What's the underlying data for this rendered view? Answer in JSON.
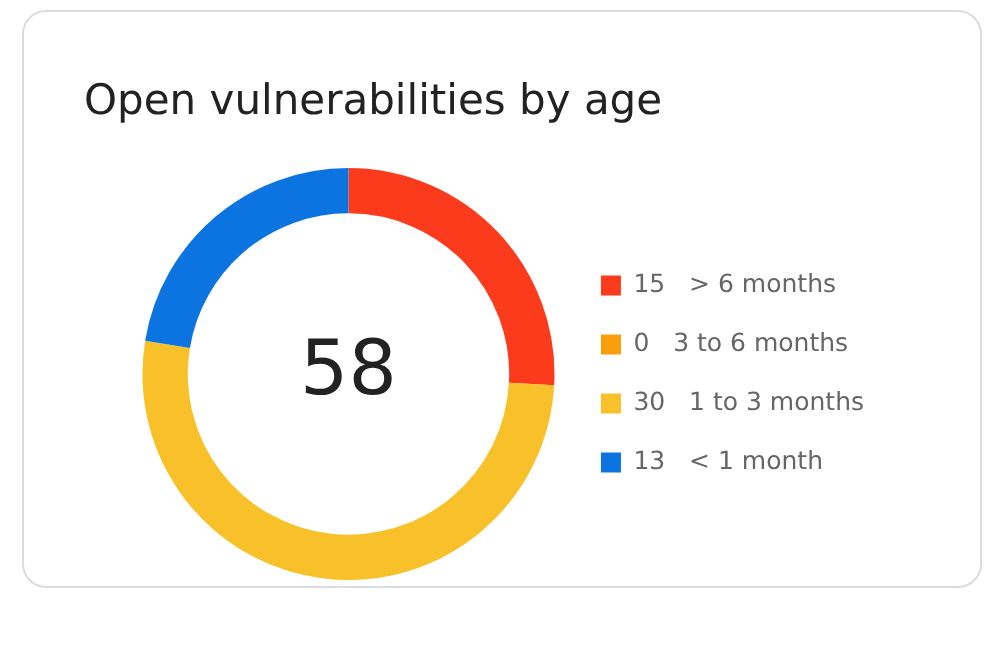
{
  "chart_data": {
    "type": "donut",
    "title": "Open vulnerabilities by age",
    "categories": [
      "> 6 months",
      "3 to 6 months",
      "1 to 3 months",
      "< 1 month"
    ],
    "values": [
      15,
      0,
      30,
      13
    ],
    "value_labels": [
      "15",
      "0",
      "30",
      "13"
    ],
    "colors": [
      "#fc3a1c",
      "#fb9e0b",
      "#f8c12a",
      "#0b74e0"
    ],
    "legend": "right",
    "annotations": [
      "58"
    ]
  }
}
